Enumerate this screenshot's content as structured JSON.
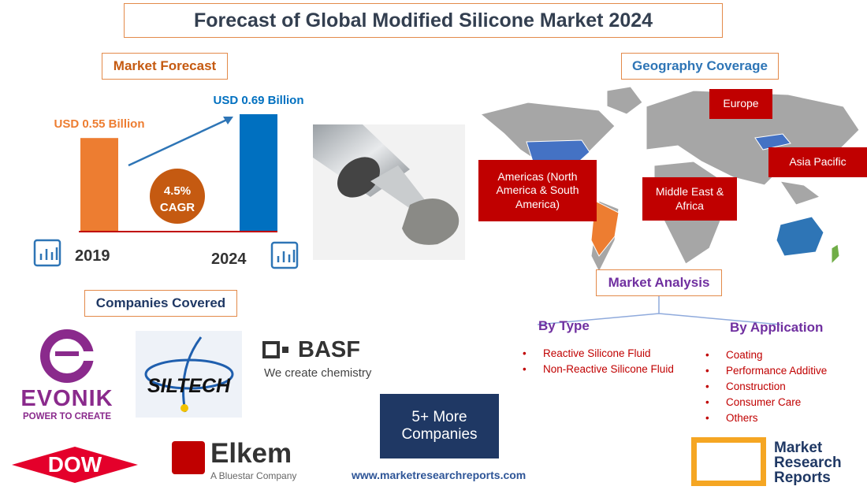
{
  "title": "Forecast of Global Modified Silicone Market 2024",
  "market_forecast": {
    "heading": "Market Forecast",
    "bars": [
      {
        "year": "2019",
        "label": "USD 0.55 Billion",
        "value": 0.55,
        "color": "#ed7d31"
      },
      {
        "year": "2024",
        "label": "USD 0.69 Billion",
        "value": 0.69,
        "color": "#0070c0"
      }
    ],
    "cagr": "4.5%",
    "cagr_label": "CAGR"
  },
  "geography": {
    "heading": "Geography Coverage",
    "regions": [
      "Europe",
      "Asia Pacific",
      "Americas (North America & South America)",
      "Middle East & Africa"
    ]
  },
  "companies": {
    "heading": "Companies Covered",
    "logos": [
      {
        "name": "EVONIK",
        "tagline": "POWER TO CREATE"
      },
      {
        "name": "SILTECH"
      },
      {
        "name": "BASF",
        "tagline": "We create chemistry"
      },
      {
        "name": "DOW"
      },
      {
        "name": "Elkem",
        "tagline": "A Bluestar Company"
      }
    ],
    "more": "5+ More Companies"
  },
  "analysis": {
    "heading": "Market Analysis",
    "by_type": {
      "heading": "By Type",
      "items": [
        "Reactive Silicone Fluid",
        "Non-Reactive Silicone Fluid"
      ]
    },
    "by_application": {
      "heading": "By Application",
      "items": [
        "Coating",
        "Performance Additive",
        "Construction",
        "Consumer Care",
        "Others"
      ]
    }
  },
  "website": "www.marketresearchreports.com",
  "brand": "Market Research Reports"
}
